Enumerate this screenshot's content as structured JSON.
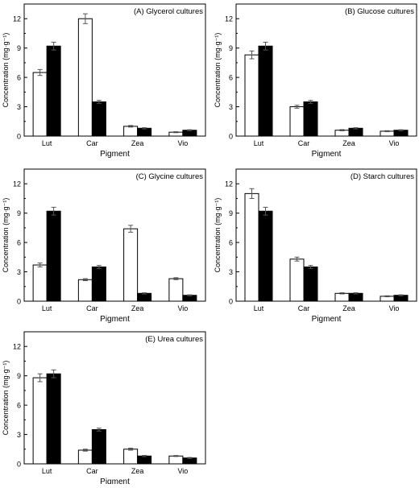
{
  "chart_data": [
    {
      "type": "bar",
      "title": "(A) Glycerol cultures",
      "xlabel": "Pigment",
      "ylabel": "Concentration (mg·g⁻¹)",
      "categories": [
        "Lut",
        "Car",
        "Zea",
        "Vio"
      ],
      "ylim": [
        0,
        13.5
      ],
      "yticks": [
        "0",
        "3",
        "6",
        "9",
        "12"
      ],
      "series": [
        {
          "fill": "#ffffff",
          "values": [
            6.5,
            12.0,
            1.0,
            0.4
          ],
          "errors": [
            0.3,
            0.5,
            0.08,
            0.05
          ]
        },
        {
          "fill": "#000000",
          "values": [
            9.2,
            3.5,
            0.8,
            0.6
          ],
          "errors": [
            0.4,
            0.15,
            0.06,
            0.05
          ]
        }
      ]
    },
    {
      "type": "bar",
      "title": "(B) Glucose cultures",
      "xlabel": "Pigment",
      "ylabel": "Concentration (mg·g⁻¹)",
      "categories": [
        "Lut",
        "Car",
        "Zea",
        "Vio"
      ],
      "ylim": [
        0,
        13.5
      ],
      "yticks": [
        "0",
        "3",
        "6",
        "9",
        "12"
      ],
      "series": [
        {
          "fill": "#ffffff",
          "values": [
            8.3,
            3.0,
            0.6,
            0.5
          ],
          "errors": [
            0.4,
            0.15,
            0.06,
            0.05
          ]
        },
        {
          "fill": "#000000",
          "values": [
            9.2,
            3.5,
            0.8,
            0.6
          ],
          "errors": [
            0.4,
            0.15,
            0.06,
            0.05
          ]
        }
      ]
    },
    {
      "type": "bar",
      "title": "(C) Glycine cultures",
      "xlabel": "Pigment",
      "ylabel": "Concentration (mg·g⁻¹)",
      "categories": [
        "Lut",
        "Car",
        "Zea",
        "Vio"
      ],
      "ylim": [
        0,
        13.5
      ],
      "yticks": [
        "0",
        "3",
        "6",
        "9",
        "12"
      ],
      "series": [
        {
          "fill": "#ffffff",
          "values": [
            3.7,
            2.2,
            7.4,
            2.3
          ],
          "errors": [
            0.2,
            0.1,
            0.35,
            0.1
          ]
        },
        {
          "fill": "#000000",
          "values": [
            9.2,
            3.5,
            0.8,
            0.6
          ],
          "errors": [
            0.4,
            0.15,
            0.06,
            0.05
          ]
        }
      ]
    },
    {
      "type": "bar",
      "title": "(D) Starch cultures",
      "xlabel": "Pigment",
      "ylabel": "Concentration (mg·g⁻¹)",
      "categories": [
        "Lut",
        "Car",
        "Zea",
        "Vio"
      ],
      "ylim": [
        0,
        13.5
      ],
      "yticks": [
        "0",
        "3",
        "6",
        "9",
        "12"
      ],
      "series": [
        {
          "fill": "#ffffff",
          "values": [
            11.0,
            4.3,
            0.8,
            0.5
          ],
          "errors": [
            0.5,
            0.2,
            0.06,
            0.05
          ]
        },
        {
          "fill": "#000000",
          "values": [
            9.2,
            3.5,
            0.8,
            0.6
          ],
          "errors": [
            0.4,
            0.15,
            0.06,
            0.05
          ]
        }
      ]
    },
    {
      "type": "bar",
      "title": "(E) Urea cultures",
      "xlabel": "Pigment",
      "ylabel": "Concentration (mg·g⁻¹)",
      "categories": [
        "Lut",
        "Car",
        "Zea",
        "Vio"
      ],
      "ylim": [
        0,
        13.5
      ],
      "yticks": [
        "0",
        "3",
        "6",
        "9",
        "12"
      ],
      "series": [
        {
          "fill": "#ffffff",
          "values": [
            8.8,
            1.4,
            1.5,
            0.8
          ],
          "errors": [
            0.4,
            0.1,
            0.1,
            0.05
          ]
        },
        {
          "fill": "#000000",
          "values": [
            9.2,
            3.5,
            0.8,
            0.6
          ],
          "errors": [
            0.4,
            0.15,
            0.06,
            0.05
          ]
        }
      ]
    }
  ]
}
